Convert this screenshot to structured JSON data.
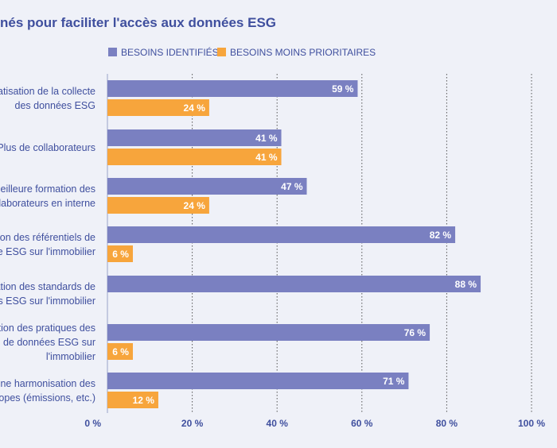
{
  "chart_data": {
    "type": "bar",
    "orientation": "horizontal",
    "title": "nés pour faciliter l'accès aux données ESG",
    "xlim": [
      0,
      100
    ],
    "ticks": [
      {
        "value": 0,
        "label": "0 %"
      },
      {
        "value": 20,
        "label": "20 %"
      },
      {
        "value": 40,
        "label": "40 %"
      },
      {
        "value": 60,
        "label": "60 %"
      },
      {
        "value": 80,
        "label": "80 %"
      },
      {
        "value": 100,
        "label": "100 %"
      }
    ],
    "grid": true,
    "legend_position": "top",
    "categories": [
      [
        "natisation de la collecte",
        "des données ESG"
      ],
      [
        "Plus de collaborateurs"
      ],
      [
        "meilleure formation des",
        "ollaborateurs en interne"
      ],
      [
        "ation des référentiels de",
        "ce ESG sur l'immobilier"
      ],
      [
        "sation des standards de",
        "gs ESG sur l'immobilier"
      ],
      [
        "ation des pratiques des",
        "urs de données ESG sur",
        "l'immobilier"
      ],
      [
        "Une harmonisation des",
        "scopes (émissions, etc.)"
      ]
    ],
    "series": [
      {
        "name": "BESOINS IDENTIFIÉS",
        "color": "#7a80c1",
        "values": [
          59,
          41,
          47,
          82,
          88,
          76,
          71
        ],
        "labels": [
          "59 %",
          "41 %",
          "47 %",
          "82 %",
          "88 %",
          "76 %",
          "71 %"
        ]
      },
      {
        "name": "BESOINS MOINS PRIORITAIRES",
        "color": "#f7a53c",
        "values": [
          24,
          41,
          24,
          6,
          null,
          6,
          12
        ],
        "labels": [
          "24 %",
          "41 %",
          "24 %",
          "6 %",
          "",
          "6 %",
          "12 %"
        ]
      }
    ]
  }
}
